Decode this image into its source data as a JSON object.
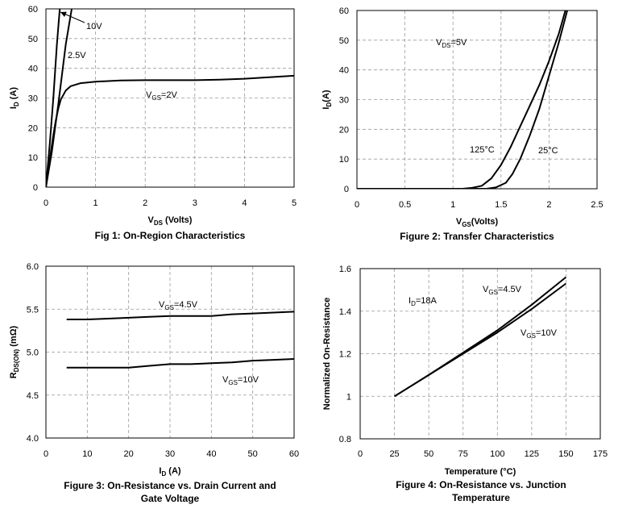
{
  "chart_data": [
    {
      "type": "line",
      "title": "Fig 1: On-Region Characteristics",
      "xlabel": {
        "main": "V",
        "sub": "DS",
        "rest": " (Volts)"
      },
      "ylabel": {
        "main": "I",
        "sub": "D",
        "rest": " (A)"
      },
      "xlim": [
        0,
        5
      ],
      "ylim": [
        0,
        60
      ],
      "xticks": [
        "0",
        "1",
        "2",
        "3",
        "4",
        "5"
      ],
      "yticks": [
        "0",
        "10",
        "20",
        "30",
        "40",
        "50",
        "60"
      ],
      "grid": true,
      "series": [
        {
          "name": "10V",
          "label": {
            "main": "10V"
          },
          "x": [
            0,
            0.08,
            0.15,
            0.22,
            0.28
          ],
          "y": [
            0,
            15,
            30,
            48,
            60
          ]
        },
        {
          "name": "2.5V",
          "label": {
            "main": "2.5V"
          },
          "x": [
            0,
            0.12,
            0.25,
            0.4,
            0.52
          ],
          "y": [
            0,
            12,
            28,
            48,
            60
          ]
        },
        {
          "name": "VGS=2V",
          "label": {
            "main": "V",
            "sub": "GS",
            "rest": "=2V"
          },
          "x": [
            0,
            0.05,
            0.1,
            0.15,
            0.2,
            0.25,
            0.3,
            0.4,
            0.5,
            0.7,
            1,
            1.5,
            2,
            2.5,
            3,
            3.5,
            4,
            4.5,
            5
          ],
          "y": [
            0,
            6,
            12,
            17.5,
            22.5,
            26.5,
            29.5,
            32.5,
            34,
            35,
            35.5,
            35.9,
            36,
            36,
            36,
            36.2,
            36.5,
            37,
            37.5
          ]
        }
      ]
    },
    {
      "type": "line",
      "title": "Figure 2: Transfer Characteristics",
      "xlabel": {
        "main": "V",
        "sub": "GS",
        "rest": "(Volts)"
      },
      "ylabel": {
        "main": "I",
        "sub": "D",
        "rest": "(A)"
      },
      "xlim": [
        0,
        2.5
      ],
      "ylim": [
        0,
        60
      ],
      "xticks": [
        "0",
        "0.5",
        "1",
        "1.5",
        "2",
        "2.5"
      ],
      "yticks": [
        "0",
        "10",
        "20",
        "30",
        "40",
        "50",
        "60"
      ],
      "grid": true,
      "annotations": [
        {
          "main": "V",
          "sub": "DS",
          "rest": "=5V"
        }
      ],
      "series": [
        {
          "name": "125°C",
          "label": {
            "main": "125°C"
          },
          "x": [
            0,
            1.1,
            1.2,
            1.3,
            1.4,
            1.5,
            1.6,
            1.7,
            1.8,
            1.9,
            2.0,
            2.1,
            2.17
          ],
          "y": [
            0,
            0,
            0.3,
            1,
            3.5,
            8,
            14,
            21,
            28,
            35,
            43,
            52,
            60
          ]
        },
        {
          "name": "25°C",
          "label": {
            "main": "25°C"
          },
          "x": [
            0,
            1.35,
            1.45,
            1.55,
            1.62,
            1.7,
            1.8,
            1.9,
            2.0,
            2.1,
            2.19
          ],
          "y": [
            0,
            0,
            0.5,
            2,
            5,
            10,
            18,
            27,
            38,
            49,
            60
          ]
        }
      ]
    },
    {
      "type": "line",
      "title": [
        "Figure 3: On-Resistance vs. Drain Current and",
        "Gate Voltage"
      ],
      "xlabel": {
        "main": "I",
        "sub": "D",
        "rest": " (A)"
      },
      "ylabel": {
        "main": "R",
        "sub": "DS(ON)",
        "rest": " (mΩ)"
      },
      "xlim": [
        0,
        60
      ],
      "ylim": [
        4.0,
        6.0
      ],
      "xticks": [
        "0",
        "10",
        "20",
        "30",
        "40",
        "50",
        "60"
      ],
      "yticks": [
        "4.0",
        "4.5",
        "5.0",
        "5.5",
        "6.0"
      ],
      "grid": true,
      "series": [
        {
          "name": "VGS=4.5V",
          "label": {
            "main": "V",
            "sub": "GS",
            "rest": "=4.5V"
          },
          "x": [
            5,
            10,
            15,
            20,
            25,
            30,
            35,
            40,
            45,
            50,
            55,
            60
          ],
          "y": [
            5.38,
            5.38,
            5.39,
            5.4,
            5.41,
            5.42,
            5.42,
            5.42,
            5.44,
            5.45,
            5.46,
            5.47
          ]
        },
        {
          "name": "VGS=10V",
          "label": {
            "main": "V",
            "sub": "GS",
            "rest": "=10V"
          },
          "x": [
            5,
            10,
            15,
            20,
            25,
            30,
            35,
            40,
            45,
            50,
            55,
            60
          ],
          "y": [
            4.82,
            4.82,
            4.82,
            4.82,
            4.84,
            4.86,
            4.86,
            4.87,
            4.88,
            4.9,
            4.91,
            4.92
          ]
        }
      ]
    },
    {
      "type": "line",
      "title": [
        "Figure 4: On-Resistance vs. Junction",
        "Temperature"
      ],
      "xlabel": {
        "main": "Temperature (°C)"
      },
      "ylabel": {
        "main": "Normalized On-Resistance"
      },
      "xlim": [
        0,
        175
      ],
      "ylim": [
        0.8,
        1.6
      ],
      "xticks": [
        "0",
        "25",
        "50",
        "75",
        "100",
        "125",
        "150",
        "175"
      ],
      "yticks": [
        "0.8",
        "1",
        "1.2",
        "1.4",
        "1.6"
      ],
      "grid": true,
      "annotations": [
        {
          "main": "I",
          "sub": "D",
          "rest": "=18A"
        }
      ],
      "series": [
        {
          "name": "VGS=4.5V",
          "label": {
            "main": "V",
            "sub": "GS",
            "rest": "=4.5V"
          },
          "x": [
            25,
            50,
            75,
            100,
            125,
            150
          ],
          "y": [
            1.0,
            1.1,
            1.205,
            1.31,
            1.43,
            1.56
          ]
        },
        {
          "name": "VGS=10V",
          "label": {
            "main": "V",
            "sub": "GS",
            "rest": "=10V"
          },
          "x": [
            25,
            50,
            75,
            100,
            125,
            150
          ],
          "y": [
            1.0,
            1.1,
            1.2,
            1.3,
            1.41,
            1.53
          ]
        }
      ]
    }
  ]
}
